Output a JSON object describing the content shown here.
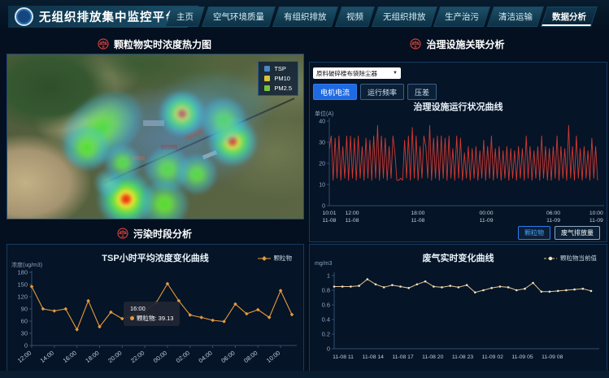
{
  "app": {
    "title": "无组织排放集中监控平台"
  },
  "nav": {
    "items": [
      {
        "label": "主页",
        "active": false
      },
      {
        "label": "空气环境质量",
        "active": false
      },
      {
        "label": "有组织排放",
        "active": false
      },
      {
        "label": "视频",
        "active": false
      },
      {
        "label": "无组织排放",
        "active": false
      },
      {
        "label": "生产治污",
        "active": false
      },
      {
        "label": "清洁运输",
        "active": false
      },
      {
        "label": "数据分析",
        "active": true
      }
    ]
  },
  "panels": {
    "heatmap": {
      "title": "颗粒物实时浓度热力图",
      "legend": [
        {
          "label": "TSP",
          "color": "#4a86c8"
        },
        {
          "label": "PM10",
          "color": "#d8c23a"
        },
        {
          "label": "PM2.5",
          "color": "#7ac23a"
        }
      ],
      "heat_points": [
        {
          "x": 59,
          "y": 36,
          "size": 58,
          "level": "hot"
        },
        {
          "x": 76,
          "y": 53,
          "size": 62,
          "level": "hot"
        },
        {
          "x": 40,
          "y": 88,
          "size": 72,
          "level": "hot"
        },
        {
          "x": 32,
          "y": 45,
          "size": 78,
          "level": "green",
          "stretch": true
        },
        {
          "x": 27,
          "y": 57,
          "size": 56,
          "level": "green"
        },
        {
          "x": 73,
          "y": 40,
          "size": 56,
          "level": "green"
        },
        {
          "x": 39,
          "y": 66,
          "size": 44,
          "level": "green"
        },
        {
          "x": 54,
          "y": 70,
          "size": 56,
          "level": "green"
        },
        {
          "x": 64,
          "y": 73,
          "size": 50,
          "level": "green"
        },
        {
          "x": 53,
          "y": 91,
          "size": 60,
          "level": "green"
        },
        {
          "x": 34,
          "y": 78,
          "size": 36,
          "level": "cool"
        },
        {
          "x": 56,
          "y": 50,
          "size": 230,
          "level": "haze"
        },
        {
          "x": 70,
          "y": 30,
          "size": 150,
          "level": "haze"
        }
      ]
    },
    "correlation": {
      "title": "治理设施关联分析",
      "device_select": "原料破碎楼布袋除尘器",
      "metric_buttons": [
        {
          "label": "电机电流",
          "active": true
        },
        {
          "label": "运行频率",
          "active": false
        },
        {
          "label": "压差",
          "active": false
        }
      ],
      "series_buttons": [
        {
          "label": "颗粒物",
          "active": true
        },
        {
          "label": "废气排放量",
          "active": false
        }
      ]
    },
    "pollution": {
      "title": "污染时段分析"
    }
  },
  "chart_data": [
    {
      "id": "facility-status",
      "type": "line",
      "title": "治理设施运行状况曲线",
      "ylabel": "单位(A)",
      "ylim": [
        0,
        40
      ],
      "yticks": [
        0,
        10,
        20,
        30,
        40
      ],
      "xticks": [
        {
          "time": "10:01",
          "date": "11-08",
          "pos": 0
        },
        {
          "time": "12:00",
          "date": "11-08",
          "pos": 0.085
        },
        {
          "time": "18:00",
          "date": "11-08",
          "pos": 0.33
        },
        {
          "time": "00:00",
          "date": "11-09",
          "pos": 0.585
        },
        {
          "time": "06:00",
          "date": "11-09",
          "pos": 0.835
        },
        {
          "time": "10:00",
          "date": "11-09",
          "pos": 0.995
        }
      ],
      "series": [
        {
          "name": "电机电流",
          "color": "#cf3a33",
          "values": [
            27,
            33,
            12,
            32,
            13,
            33,
            12,
            28,
            13,
            33,
            12,
            33,
            13,
            32,
            12,
            33,
            13,
            28,
            12,
            32,
            13,
            31,
            12,
            33,
            13,
            38,
            12,
            33,
            13,
            32,
            12,
            28,
            13,
            33,
            25,
            12,
            12,
            13,
            12,
            31,
            13,
            33,
            12,
            37,
            13,
            33,
            12,
            28,
            13,
            33,
            28,
            13,
            38,
            12,
            32,
            13,
            33,
            12,
            33,
            13,
            32,
            12,
            33,
            13,
            27,
            12,
            33,
            13,
            32,
            12,
            25,
            13,
            28,
            12,
            27,
            13,
            28,
            12,
            26,
            13,
            31,
            12,
            28,
            13,
            33,
            12,
            27,
            13,
            28,
            12,
            26,
            13,
            28,
            12,
            27,
            13,
            26,
            12,
            28,
            13,
            27,
            12,
            33,
            13,
            28,
            12,
            26,
            13,
            28,
            12,
            33,
            13,
            28,
            12,
            27,
            12,
            28,
            13,
            33,
            12,
            28,
            13,
            27,
            12,
            38,
            13,
            28,
            12,
            33,
            13,
            27,
            12,
            28,
            13,
            26,
            12,
            32,
            13,
            28,
            12
          ]
        }
      ]
    },
    {
      "id": "tsp-hourly",
      "type": "line",
      "title": "TSP小时平均浓度变化曲线",
      "ylabel": "浓度(ug/m3)",
      "ylim": [
        0,
        180
      ],
      "yticks": [
        0,
        30,
        60,
        90,
        120,
        150,
        180
      ],
      "categories": [
        "12:00",
        "13:00",
        "14:00",
        "15:00",
        "16:00",
        "17:00",
        "18:00",
        "19:00",
        "20:00",
        "21:00",
        "22:00",
        "23:00",
        "00:00",
        "01:00",
        "02:00",
        "03:00",
        "04:00",
        "05:00",
        "06:00",
        "07:00",
        "08:00",
        "09:00",
        "10:00",
        "11:00"
      ],
      "xtick_every": 2,
      "legend": [
        "颗粒物"
      ],
      "series": [
        {
          "name": "颗粒物",
          "color": "#e79a3c",
          "values": [
            145,
            90,
            85,
            90,
            39.13,
            110,
            46,
            82,
            66,
            73,
            85,
            105,
            152,
            110,
            75,
            69,
            62,
            59,
            102,
            78,
            88,
            69,
            135,
            76
          ]
        }
      ],
      "tooltip": {
        "time": "16:00",
        "label": "颗粒物",
        "value": "39.13",
        "text": "颗粒物:  39.13"
      }
    },
    {
      "id": "exhaust-realtime",
      "type": "line",
      "title": "废气实时变化曲线",
      "ylabel": "mg/m3",
      "ylim": [
        0,
        1
      ],
      "yticks": [
        0,
        0.2,
        0.4,
        0.6,
        0.8,
        1
      ],
      "xtick_labels": [
        "11-08 11",
        "11-08 14",
        "11-08 17",
        "11-08 20",
        "11-08 23",
        "11-09 02",
        "11-09 05",
        "11-09 08"
      ],
      "legend": [
        "颗粒物当前值"
      ],
      "series": [
        {
          "name": "颗粒物当前值",
          "color": "#e3c693",
          "values": [
            0.85,
            0.85,
            0.85,
            0.86,
            0.95,
            0.88,
            0.84,
            0.87,
            0.85,
            0.83,
            0.88,
            0.92,
            0.85,
            0.84,
            0.86,
            0.84,
            0.87,
            0.77,
            0.8,
            0.83,
            0.85,
            0.84,
            0.8,
            0.82,
            0.9,
            0.78,
            0.78,
            0.79,
            0.8,
            0.81,
            0.82,
            0.79
          ]
        }
      ]
    }
  ]
}
